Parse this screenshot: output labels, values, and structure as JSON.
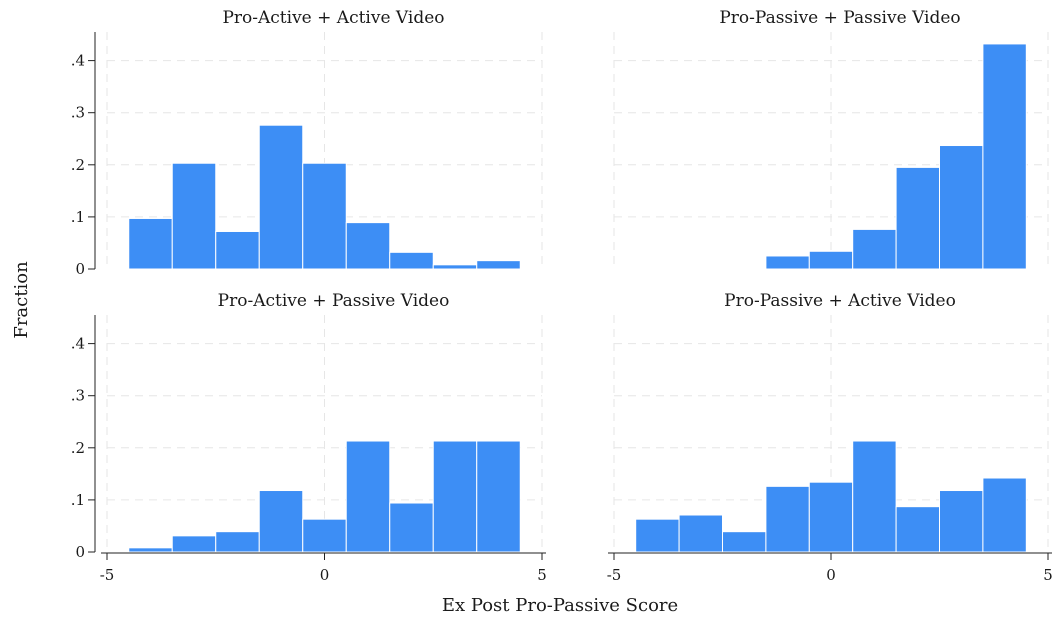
{
  "chart_data": {
    "type": "bar",
    "subtype": "histogram",
    "xlabel": "Ex Post Pro-Passive Score",
    "ylabel": "Fraction",
    "xlim": [
      -5,
      5
    ],
    "ylim": [
      0,
      0.45
    ],
    "x_ticks": [
      -5,
      0,
      5
    ],
    "x_tick_labels": [
      "-5",
      "0",
      "5"
    ],
    "y_ticks": [
      0,
      0.1,
      0.2,
      0.3,
      0.4
    ],
    "y_tick_labels": [
      "0",
      ".1",
      ".2",
      ".3",
      ".4"
    ],
    "bin_width": 1,
    "bar_color": "#3d8ef5",
    "grid": true,
    "panels": [
      {
        "title": "Pro-Active + Active Video",
        "bins": [
          {
            "x0": -4.5,
            "value": 0.097
          },
          {
            "x0": -3.5,
            "value": 0.203
          },
          {
            "x0": -2.5,
            "value": 0.072
          },
          {
            "x0": -1.5,
            "value": 0.276
          },
          {
            "x0": -0.5,
            "value": 0.203
          },
          {
            "x0": 0.5,
            "value": 0.089
          },
          {
            "x0": 1.5,
            "value": 0.032
          },
          {
            "x0": 2.5,
            "value": 0.008
          },
          {
            "x0": 3.5,
            "value": 0.016
          }
        ]
      },
      {
        "title": "Pro-Passive + Passive Video",
        "bins": [
          {
            "x0": -1.5,
            "value": 0.025
          },
          {
            "x0": -0.5,
            "value": 0.034
          },
          {
            "x0": 0.5,
            "value": 0.076
          },
          {
            "x0": 1.5,
            "value": 0.195
          },
          {
            "x0": 2.5,
            "value": 0.237
          },
          {
            "x0": 3.5,
            "value": 0.432
          }
        ]
      },
      {
        "title": "Pro-Active + Passive Video",
        "bins": [
          {
            "x0": -4.5,
            "value": 0.008
          },
          {
            "x0": -3.5,
            "value": 0.031
          },
          {
            "x0": -2.5,
            "value": 0.039
          },
          {
            "x0": -1.5,
            "value": 0.118
          },
          {
            "x0": -0.5,
            "value": 0.063
          },
          {
            "x0": 0.5,
            "value": 0.213
          },
          {
            "x0": 1.5,
            "value": 0.094
          },
          {
            "x0": 2.5,
            "value": 0.213
          },
          {
            "x0": 3.5,
            "value": 0.213
          }
        ]
      },
      {
        "title": "Pro-Passive + Active Video",
        "bins": [
          {
            "x0": -4.5,
            "value": 0.063
          },
          {
            "x0": -3.5,
            "value": 0.071
          },
          {
            "x0": -2.5,
            "value": 0.039
          },
          {
            "x0": -1.5,
            "value": 0.126
          },
          {
            "x0": -0.5,
            "value": 0.134
          },
          {
            "x0": 0.5,
            "value": 0.213
          },
          {
            "x0": 1.5,
            "value": 0.087
          },
          {
            "x0": 2.5,
            "value": 0.118
          },
          {
            "x0": 3.5,
            "value": 0.142
          }
        ]
      }
    ]
  }
}
